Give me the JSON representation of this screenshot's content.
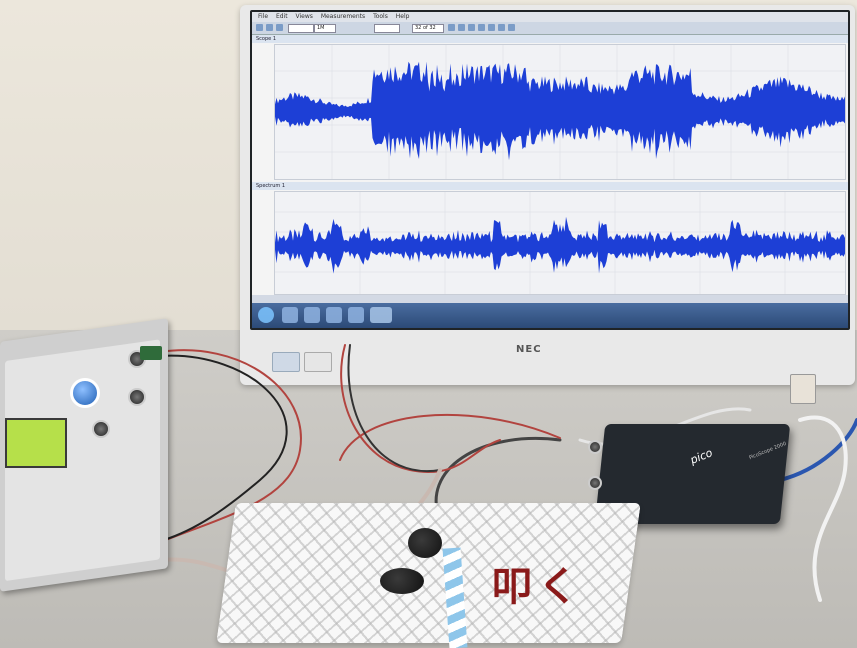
{
  "monitor": {
    "brand": "NEC",
    "menu_items": [
      "File",
      "Edit",
      "Views",
      "Measurements",
      "Tools",
      "Help"
    ],
    "toolbar": {
      "samples": "1M",
      "buffer": "32 of 32"
    },
    "views": {
      "top_label": "Scope 1",
      "bottom_label": "Spectrum 1",
      "waveform_color": "#1d3fd6"
    }
  },
  "annotation": {
    "text": "叩く",
    "color": "#8a1a1a"
  },
  "function_generator": {
    "display_color": "#b6e04a"
  },
  "oscilloscope": {
    "logo": "pico",
    "model": "PicoScope 2000"
  }
}
